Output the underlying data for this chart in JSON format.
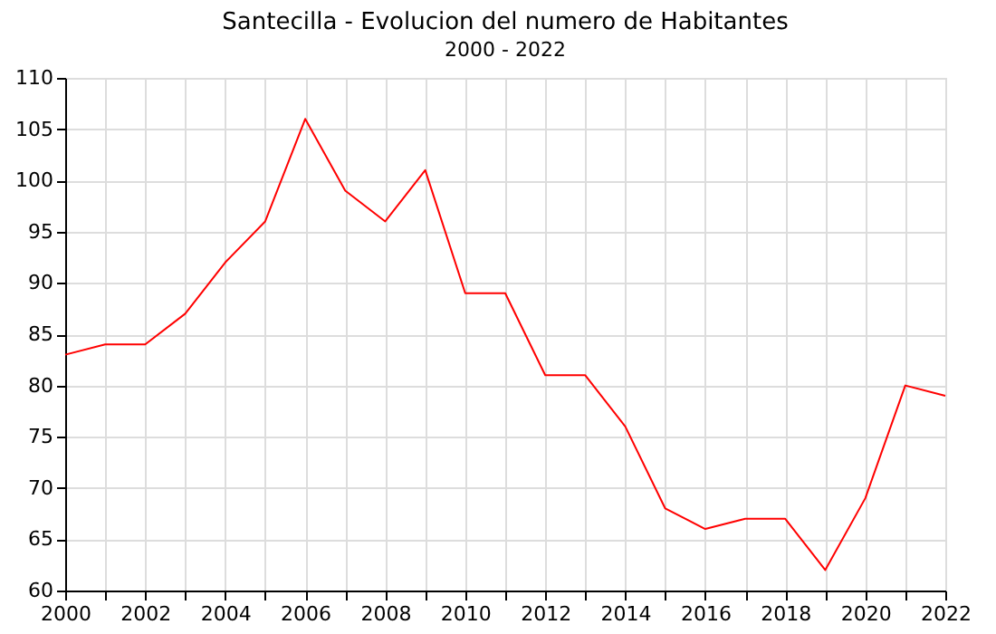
{
  "chart_data": {
    "type": "line",
    "title": "Santecilla - Evolucion del numero de Habitantes",
    "subtitle": "2000 - 2022",
    "x": [
      2000,
      2001,
      2002,
      2003,
      2004,
      2005,
      2006,
      2007,
      2008,
      2009,
      2010,
      2011,
      2012,
      2013,
      2014,
      2015,
      2016,
      2017,
      2018,
      2019,
      2020,
      2021,
      2022
    ],
    "series": [
      {
        "color": "#ff0000",
        "values": [
          83,
          84,
          84,
          87,
          92,
          96,
          106,
          99,
          96,
          101,
          89,
          89,
          81,
          81,
          76,
          68,
          66,
          67,
          67,
          62,
          69,
          80,
          79
        ]
      }
    ],
    "xlim": [
      2000,
      2022
    ],
    "xticks": [
      2000,
      {
        "value": 2001,
        "label": null
      },
      2002,
      {
        "value": 2003,
        "label": null
      },
      2004,
      {
        "value": 2005,
        "label": null
      },
      2006,
      {
        "value": 2007,
        "label": null
      },
      2008,
      {
        "value": 2009,
        "label": null
      },
      2010,
      {
        "value": 2011,
        "label": null
      },
      2012,
      {
        "value": 2013,
        "label": null
      },
      2014,
      {
        "value": 2015,
        "label": null
      },
      2016,
      {
        "value": 2017,
        "label": null
      },
      2018,
      {
        "value": 2019,
        "label": null
      },
      2020,
      {
        "value": 2021,
        "label": null
      },
      2022
    ],
    "ylim": [
      60,
      110
    ],
    "yticks": [
      60,
      65,
      70,
      75,
      80,
      85,
      90,
      95,
      100,
      105,
      110
    ],
    "grid": true,
    "marker": "none",
    "line_style": "solid",
    "legend": false
  }
}
